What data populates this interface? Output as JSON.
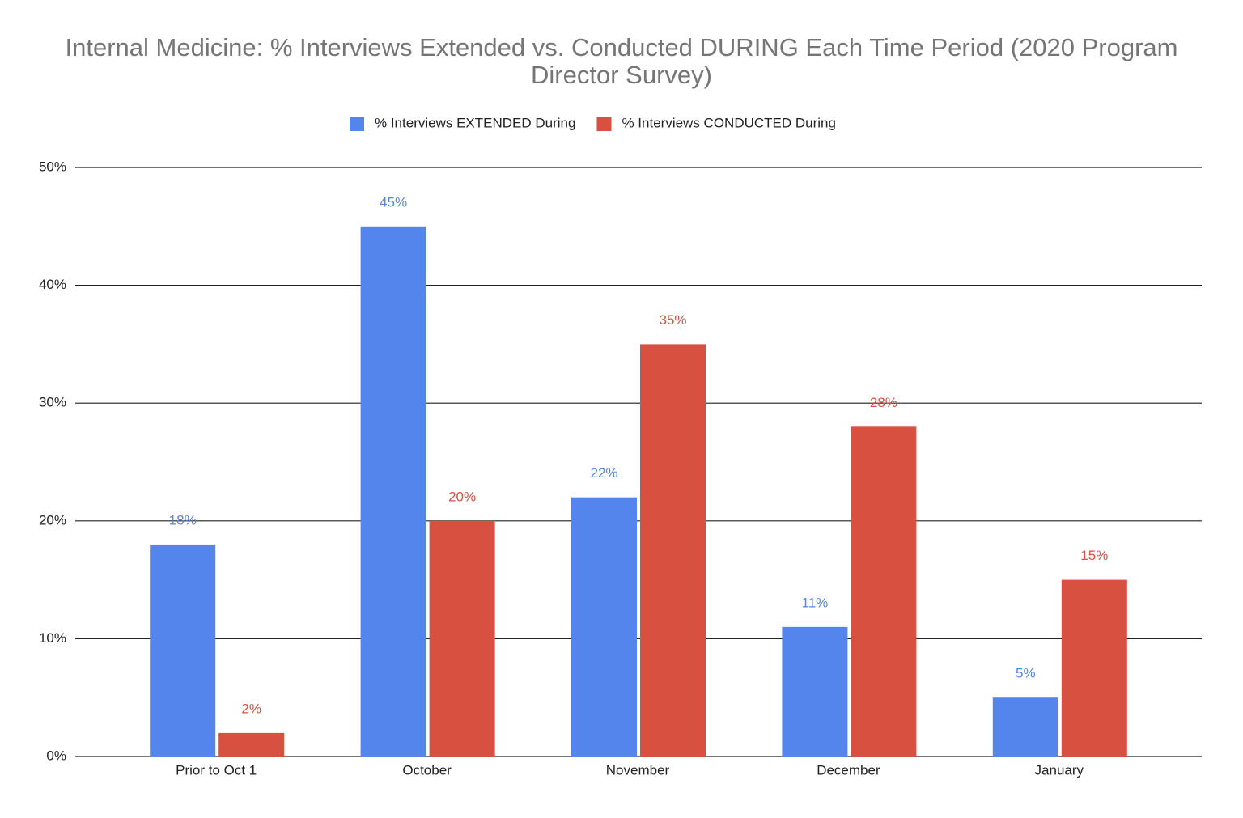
{
  "chart_data": {
    "type": "bar",
    "title": "Internal Medicine: % Interviews Extended vs. Conducted DURING Each Time Period (2020 Program Director Survey)",
    "categories": [
      "Prior to Oct 1",
      "October",
      "November",
      "December",
      "January"
    ],
    "series": [
      {
        "name": "% Interviews EXTENDED During",
        "color": "#5385ec",
        "values": [
          18,
          45,
          22,
          11,
          5
        ],
        "value_labels": [
          "18%",
          "45%",
          "22%",
          "11%",
          "5%"
        ]
      },
      {
        "name": "% Interviews CONDUCTED During",
        "color": "#d75040",
        "values": [
          2,
          20,
          35,
          28,
          15
        ],
        "value_labels": [
          "2%",
          "20%",
          "35%",
          "28%",
          "15%"
        ]
      }
    ],
    "ylim": [
      0,
      50
    ],
    "yticks": [
      {
        "value": 0,
        "label": "0%"
      },
      {
        "value": 10,
        "label": "10%"
      },
      {
        "value": 20,
        "label": "20%"
      },
      {
        "value": 30,
        "label": "30%"
      },
      {
        "value": 40,
        "label": "40%"
      },
      {
        "value": 50,
        "label": "50%"
      }
    ],
    "grid": true,
    "legend": "top"
  }
}
